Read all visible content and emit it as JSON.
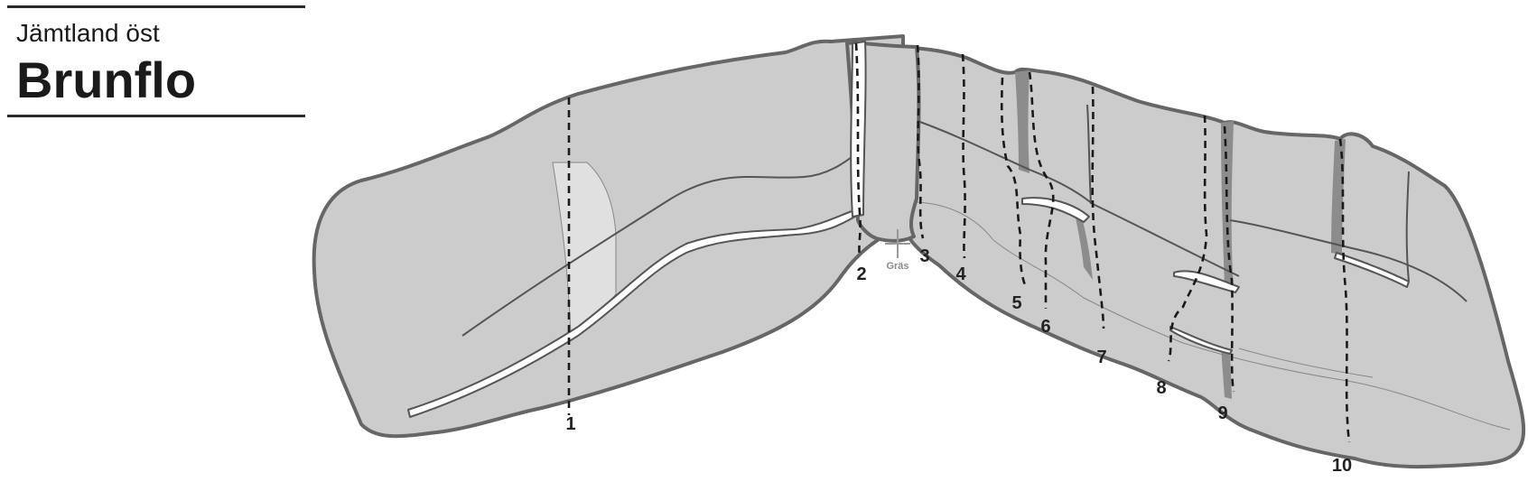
{
  "header": {
    "region": "Jämtland öst",
    "crag": "Brunflo"
  },
  "colors": {
    "rock": "#cbcccb",
    "rock_outline": "#666666",
    "ledge": "#ffffff",
    "dark_band": "#8c8c8c",
    "route_line": "#1a1a1a"
  },
  "annotation": {
    "grass": "Gräs"
  },
  "routes": [
    "1",
    "2",
    "3",
    "4",
    "5",
    "6",
    "7",
    "8",
    "9",
    "10"
  ]
}
